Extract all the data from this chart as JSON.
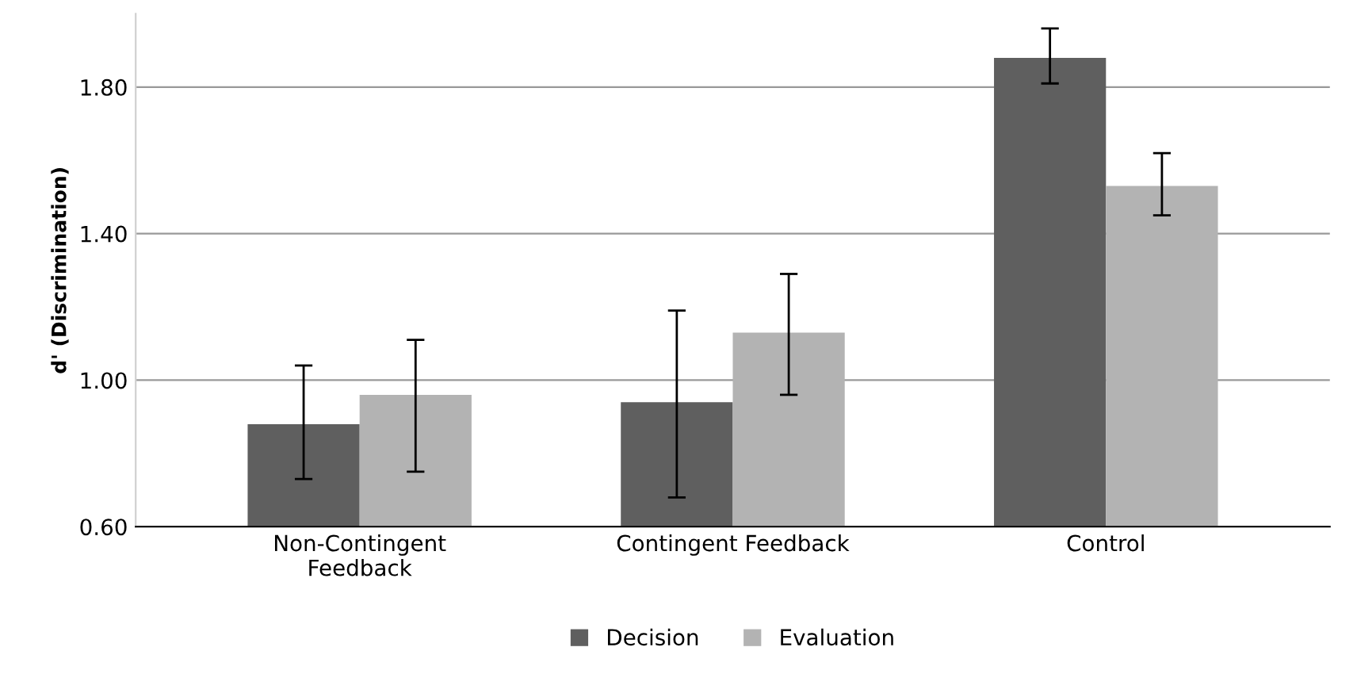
{
  "chart_data": {
    "type": "bar",
    "ylabel": "d' (Discrimination)",
    "categories": [
      "Non-Contingent\nFeedback",
      "Contingent Feedback",
      "Control"
    ],
    "series": [
      {
        "name": "Decision",
        "color": "#5f5f5f",
        "values": [
          0.88,
          0.94,
          1.88
        ],
        "errors": [
          [
            0.73,
            1.04
          ],
          [
            0.68,
            1.19
          ],
          [
            1.81,
            1.96
          ]
        ]
      },
      {
        "name": "Evaluation",
        "color": "#b3b3b3",
        "values": [
          0.96,
          1.13,
          1.53
        ],
        "errors": [
          [
            0.75,
            1.11
          ],
          [
            0.96,
            1.29
          ],
          [
            1.45,
            1.62
          ]
        ]
      }
    ],
    "ylim": [
      0.6,
      2.0
    ],
    "yticks": [
      {
        "value": 0.6,
        "label": "0.60"
      },
      {
        "value": 1.0,
        "label": "1.00"
      },
      {
        "value": 1.4,
        "label": "1.40"
      },
      {
        "value": 1.8,
        "label": "1.80"
      }
    ],
    "grid": "y",
    "legend": "bottom"
  }
}
